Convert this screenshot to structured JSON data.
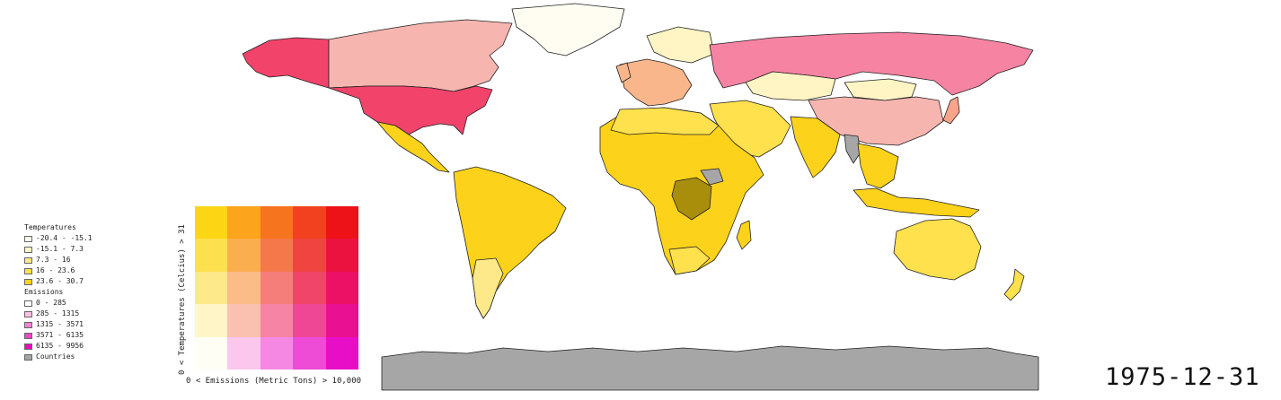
{
  "legend": {
    "temperatures_title": "Temperatures",
    "temperatures": [
      {
        "label": "-20.4 - -15.1",
        "color": "#fffdf2"
      },
      {
        "label": "-15.1 - 7.3",
        "color": "#fff5c4"
      },
      {
        "label": "7.3 - 16",
        "color": "#ffea8a"
      },
      {
        "label": "16 - 23.6",
        "color": "#ffe04d"
      },
      {
        "label": "23.6 - 30.7",
        "color": "#fdd21a"
      }
    ],
    "emissions_title": "Emissions",
    "emissions": [
      {
        "label": "0 - 285",
        "color": "#ffffff"
      },
      {
        "label": "285 - 1315",
        "color": "#f9c0e4"
      },
      {
        "label": "1315 - 3571",
        "color": "#f383d3"
      },
      {
        "label": "3571 - 6135",
        "color": "#ec48c6"
      },
      {
        "label": "6135 - 9956",
        "color": "#e80cb7"
      }
    ],
    "countries_label": "Countries",
    "countries_color": "#a6a6a6"
  },
  "bivariate": {
    "y_axis_label": "0 < Temperatures (Celcius) > 31",
    "x_axis_label": "0 < Emissions (Metric Tons) > 10,000",
    "grid": [
      [
        "#fcd615",
        "#fba41c",
        "#f6741e",
        "#f1411f",
        "#ec1218"
      ],
      [
        "#fde04e",
        "#fbae4e",
        "#f5784a",
        "#f04440",
        "#ec1240"
      ],
      [
        "#fde88a",
        "#fbbc87",
        "#f57e7b",
        "#f04468",
        "#ec1165"
      ],
      [
        "#fff5c6",
        "#fbc1b0",
        "#f584a5",
        "#ef4796",
        "#ea1092"
      ],
      [
        "#fffef5",
        "#fbc7ec",
        "#f588e3",
        "#ee4bd6",
        "#e80dc6"
      ]
    ]
  },
  "date": "1975-12-31"
}
